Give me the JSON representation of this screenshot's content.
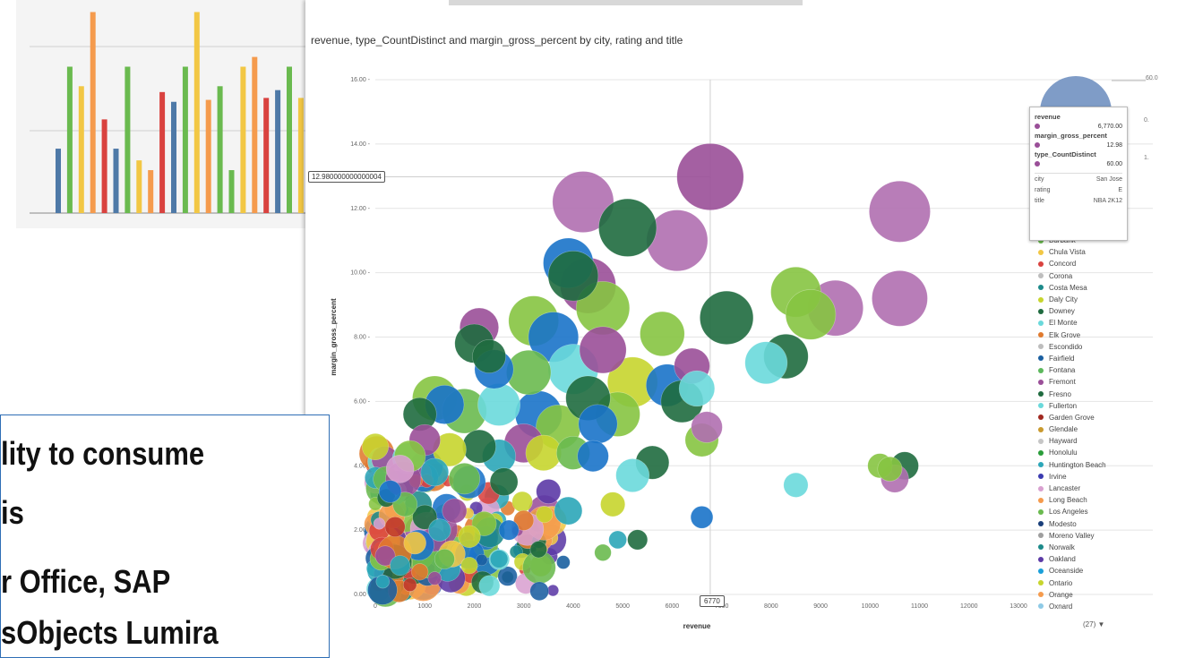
{
  "chart_data": [
    {
      "type": "bar",
      "ylim": [
        0,
        10
      ],
      "colors": [
        "#4e79a7",
        "#6aba4f",
        "#f2c744",
        "#f59b4d",
        "#d9423f"
      ],
      "values": [
        3.3,
        7.5,
        6.5,
        10.3,
        4.8,
        3.3,
        7.5,
        2.7,
        2.2,
        6.2,
        5.7,
        7.5,
        10.3,
        5.8,
        6.5,
        2.2,
        7.5,
        8.0,
        5.9,
        6.3,
        7.5,
        5.9,
        8.0,
        8.9,
        7.0
      ],
      "bar_colors": [
        "#4e79a7",
        "#6aba4f",
        "#f2c744",
        "#f59b4d",
        "#d9423f",
        "#4e79a7",
        "#6aba4f",
        "#f2c744",
        "#f59b4d",
        "#d9423f",
        "#4e79a7",
        "#6aba4f",
        "#f2c744",
        "#f59b4d",
        "#6aba4f",
        "#6aba4f",
        "#f2c744",
        "#f59b4d",
        "#d9423f",
        "#4e79a7",
        "#6aba4f",
        "#f2c744",
        "#f59b4d",
        "#d9423f",
        "#6aba4f"
      ]
    },
    {
      "type": "scatter",
      "title": "revenue, type_CountDistinct and margin_gross_percent by city, rating and title",
      "xlabel": "revenue",
      "ylabel": "margin_gross_percent",
      "xlim": [
        0,
        13000
      ],
      "ylim": [
        0,
        16
      ],
      "x_ticks": [
        "0",
        "1000",
        "2000",
        "3000",
        "4000",
        "5000",
        "6000",
        "7000",
        "8000",
        "9000",
        "10000",
        "11000",
        "12000",
        "13000"
      ],
      "y_ticks": [
        "0.00",
        "2.00",
        "4.00",
        "6.00",
        "8.00",
        "10.00",
        "12.00",
        "14.00",
        "16.00"
      ],
      "cursor_x_label": "6770",
      "cursor_y_label": "12.980000000000004",
      "points": [
        {
          "x": 6770,
          "y": 12.98,
          "s": 60,
          "c": "#9a4f98"
        },
        {
          "x": 4200,
          "y": 12.2,
          "s": 55,
          "c": "#b06fb0"
        },
        {
          "x": 10600,
          "y": 11.9,
          "s": 55,
          "c": "#b06fb0"
        },
        {
          "x": 5100,
          "y": 11.4,
          "s": 52,
          "c": "#1f6b3f"
        },
        {
          "x": 6100,
          "y": 11.0,
          "s": 55,
          "c": "#b06fb0"
        },
        {
          "x": 3900,
          "y": 10.3,
          "s": 45,
          "c": "#1a73c9"
        },
        {
          "x": 4000,
          "y": 9.9,
          "s": 45,
          "c": "#1f6b3f"
        },
        {
          "x": 4300,
          "y": 9.6,
          "s": 50,
          "c": "#9a4f98"
        },
        {
          "x": 8500,
          "y": 9.4,
          "s": 45,
          "c": "#86c441"
        },
        {
          "x": 9300,
          "y": 8.9,
          "s": 50,
          "c": "#b06fb0"
        },
        {
          "x": 10600,
          "y": 9.2,
          "s": 50,
          "c": "#b06fb0"
        },
        {
          "x": 8800,
          "y": 8.7,
          "s": 45,
          "c": "#86c441"
        },
        {
          "x": 7100,
          "y": 8.6,
          "s": 48,
          "c": "#1f6b3f"
        },
        {
          "x": 8300,
          "y": 7.4,
          "s": 40,
          "c": "#1f6b3f"
        },
        {
          "x": 7900,
          "y": 7.2,
          "s": 38,
          "c": "#6ad9db"
        },
        {
          "x": 2100,
          "y": 8.3,
          "s": 35,
          "c": "#9a4f98"
        },
        {
          "x": 3200,
          "y": 8.5,
          "s": 45,
          "c": "#86c441"
        },
        {
          "x": 4600,
          "y": 8.9,
          "s": 48,
          "c": "#86c441"
        },
        {
          "x": 3600,
          "y": 8.0,
          "s": 45,
          "c": "#1a73c9"
        },
        {
          "x": 5800,
          "y": 8.1,
          "s": 40,
          "c": "#86c441"
        },
        {
          "x": 2000,
          "y": 7.8,
          "s": 35,
          "c": "#1f6b3f"
        },
        {
          "x": 2300,
          "y": 7.4,
          "s": 30,
          "c": "#1f6b3f"
        },
        {
          "x": 2400,
          "y": 7.0,
          "s": 35,
          "c": "#1a73c9"
        },
        {
          "x": 3100,
          "y": 6.9,
          "s": 40,
          "c": "#6aba4f"
        },
        {
          "x": 4000,
          "y": 7.0,
          "s": 45,
          "c": "#6ad9db"
        },
        {
          "x": 4600,
          "y": 7.6,
          "s": 42,
          "c": "#9a4f98"
        },
        {
          "x": 5200,
          "y": 6.6,
          "s": 45,
          "c": "#c7d52d"
        },
        {
          "x": 6400,
          "y": 7.1,
          "s": 32,
          "c": "#9a4f98"
        },
        {
          "x": 6500,
          "y": 6.4,
          "s": 32,
          "c": "#6ad9db"
        },
        {
          "x": 5900,
          "y": 6.5,
          "s": 38,
          "c": "#1a73c9"
        },
        {
          "x": 6200,
          "y": 6.0,
          "s": 38,
          "c": "#1f6b3f"
        },
        {
          "x": 4900,
          "y": 5.6,
          "s": 40,
          "c": "#86c441"
        },
        {
          "x": 1200,
          "y": 6.1,
          "s": 40,
          "c": "#86c441"
        },
        {
          "x": 1400,
          "y": 5.9,
          "s": 35,
          "c": "#1a73c9"
        },
        {
          "x": 900,
          "y": 5.6,
          "s": 30,
          "c": "#1f6b3f"
        },
        {
          "x": 1800,
          "y": 5.7,
          "s": 40,
          "c": "#6aba4f"
        },
        {
          "x": 2500,
          "y": 5.9,
          "s": 38,
          "c": "#6ad9db"
        },
        {
          "x": 3300,
          "y": 5.6,
          "s": 42,
          "c": "#1a73c9"
        },
        {
          "x": 3700,
          "y": 5.2,
          "s": 40,
          "c": "#86c441"
        },
        {
          "x": 4300,
          "y": 6.1,
          "s": 40,
          "c": "#1f6b3f"
        },
        {
          "x": 4500,
          "y": 5.3,
          "s": 35,
          "c": "#1a73c9"
        },
        {
          "x": 6700,
          "y": 5.2,
          "s": 28,
          "c": "#b06fb0"
        },
        {
          "x": 6600,
          "y": 4.8,
          "s": 30,
          "c": "#86c441"
        },
        {
          "x": 5600,
          "y": 4.1,
          "s": 30,
          "c": "#1f6b3f"
        },
        {
          "x": 5200,
          "y": 3.7,
          "s": 30,
          "c": "#6ad9db"
        },
        {
          "x": 4400,
          "y": 4.3,
          "s": 28,
          "c": "#1a73c9"
        },
        {
          "x": 4000,
          "y": 4.4,
          "s": 30,
          "c": "#6aba4f"
        },
        {
          "x": 3400,
          "y": 4.4,
          "s": 32,
          "c": "#c7d52d"
        },
        {
          "x": 3000,
          "y": 4.7,
          "s": 35,
          "c": "#9a4f98"
        },
        {
          "x": 2500,
          "y": 4.3,
          "s": 30,
          "c": "#2ba6b8"
        },
        {
          "x": 2100,
          "y": 4.6,
          "s": 30,
          "c": "#1f6b3f"
        },
        {
          "x": 1500,
          "y": 4.5,
          "s": 30,
          "c": "#c7d52d"
        },
        {
          "x": 1000,
          "y": 4.8,
          "s": 28,
          "c": "#9a4f98"
        },
        {
          "x": 700,
          "y": 4.3,
          "s": 28,
          "c": "#86c441"
        },
        {
          "x": 500,
          "y": 3.9,
          "s": 25,
          "c": "#d9a0d0"
        },
        {
          "x": 1200,
          "y": 3.8,
          "s": 25,
          "c": "#2ba6b8"
        },
        {
          "x": 1800,
          "y": 3.6,
          "s": 28,
          "c": "#6aba4f"
        },
        {
          "x": 2600,
          "y": 3.5,
          "s": 25,
          "c": "#1f6b3f"
        },
        {
          "x": 3500,
          "y": 3.2,
          "s": 22,
          "c": "#5c3aa6"
        },
        {
          "x": 3900,
          "y": 2.6,
          "s": 25,
          "c": "#2ba6b8"
        },
        {
          "x": 4800,
          "y": 2.8,
          "s": 22,
          "c": "#c7d52d"
        },
        {
          "x": 5300,
          "y": 1.7,
          "s": 18,
          "c": "#1f6b3f"
        },
        {
          "x": 4900,
          "y": 1.7,
          "s": 16,
          "c": "#2ba6b8"
        },
        {
          "x": 4600,
          "y": 1.3,
          "s": 15,
          "c": "#6aba4f"
        },
        {
          "x": 6600,
          "y": 2.4,
          "s": 20,
          "c": "#1a73c9"
        },
        {
          "x": 8500,
          "y": 3.4,
          "s": 22,
          "c": "#6ad9db"
        },
        {
          "x": 10200,
          "y": 4.0,
          "s": 22,
          "c": "#86c441"
        },
        {
          "x": 10700,
          "y": 4.0,
          "s": 25,
          "c": "#1f6b3f"
        },
        {
          "x": 10500,
          "y": 3.6,
          "s": 25,
          "c": "#b06fb0"
        },
        {
          "x": 10400,
          "y": 3.9,
          "s": 22,
          "c": "#86c441"
        },
        {
          "x": 3000,
          "y": 2.3,
          "s": 18,
          "c": "#e07a2e"
        },
        {
          "x": 2700,
          "y": 2.0,
          "s": 18,
          "c": "#1a73c9"
        },
        {
          "x": 2200,
          "y": 2.2,
          "s": 22,
          "c": "#86c441"
        },
        {
          "x": 1900,
          "y": 1.8,
          "s": 20,
          "c": "#c7d52d"
        },
        {
          "x": 1600,
          "y": 2.6,
          "s": 22,
          "c": "#9a4f98"
        },
        {
          "x": 1300,
          "y": 2.0,
          "s": 20,
          "c": "#2ba6b8"
        },
        {
          "x": 1000,
          "y": 2.4,
          "s": 22,
          "c": "#1f6b3f"
        },
        {
          "x": 800,
          "y": 1.6,
          "s": 20,
          "c": "#f2c744"
        },
        {
          "x": 600,
          "y": 2.8,
          "s": 22,
          "c": "#6aba4f"
        },
        {
          "x": 400,
          "y": 2.1,
          "s": 18,
          "c": "#c0392b"
        },
        {
          "x": 300,
          "y": 3.2,
          "s": 20,
          "c": "#1a73c9"
        },
        {
          "x": 200,
          "y": 1.2,
          "s": 18,
          "c": "#9a4f98"
        },
        {
          "x": 500,
          "y": 0.9,
          "s": 18,
          "c": "#2ba6b8"
        },
        {
          "x": 900,
          "y": 0.7,
          "s": 15,
          "c": "#e07a2e"
        },
        {
          "x": 1400,
          "y": 1.1,
          "s": 18,
          "c": "#6aba4f"
        },
        {
          "x": 1900,
          "y": 0.9,
          "s": 15,
          "c": "#c7d52d"
        },
        {
          "x": 2500,
          "y": 1.1,
          "s": 16,
          "c": "#2ba6b8"
        },
        {
          "x": 3300,
          "y": 1.4,
          "s": 15,
          "c": "#1f6b3f"
        },
        {
          "x": 3800,
          "y": 1.0,
          "s": 12,
          "c": "#1a5fa0"
        },
        {
          "x": 150,
          "y": 0.4,
          "s": 12,
          "c": "#2ba6b8"
        },
        {
          "x": 700,
          "y": 0.3,
          "s": 12,
          "c": "#c0392b"
        },
        {
          "x": 1200,
          "y": 0.5,
          "s": 12,
          "c": "#9a4f98"
        }
      ]
    }
  ],
  "tooltip": {
    "revenue_label": "revenue",
    "revenue_value": "6,770.00",
    "margin_label": "margin_gross_percent",
    "margin_value": "12.98",
    "count_label": "type_CountDistinct",
    "count_value": "60.00",
    "city_label": "city",
    "city_value": "San Jose",
    "rating_label": "rating",
    "rating_value": "E",
    "title_label": "title",
    "title_value": "NBA 2K12"
  },
  "size_legend_ticks": [
    "60.0",
    "0.",
    "1."
  ],
  "legend": {
    "items": [
      {
        "label": "Burbank",
        "color": "#6aba4f"
      },
      {
        "label": "Chula Vista",
        "color": "#f2c744"
      },
      {
        "label": "Concord",
        "color": "#d9423f"
      },
      {
        "label": "Corona",
        "color": "#bdbdbd"
      },
      {
        "label": "Costa Mesa",
        "color": "#1c8a8a"
      },
      {
        "label": "Daly City",
        "color": "#c7d52d"
      },
      {
        "label": "Downey",
        "color": "#1f6b3f"
      },
      {
        "label": "El Monte",
        "color": "#6ad9db"
      },
      {
        "label": "Elk Grove",
        "color": "#e07a2e"
      },
      {
        "label": "Escondido",
        "color": "#bdbdbd"
      },
      {
        "label": "Fairfield",
        "color": "#1a5fa0"
      },
      {
        "label": "Fontana",
        "color": "#5cb85c"
      },
      {
        "label": "Fremont",
        "color": "#9a4f98"
      },
      {
        "label": "Fresno",
        "color": "#1f6b3f"
      },
      {
        "label": "Fullerton",
        "color": "#6ad9db"
      },
      {
        "label": "Garden Grove",
        "color": "#a0281f"
      },
      {
        "label": "Glendale",
        "color": "#c99a2e"
      },
      {
        "label": "Hayward",
        "color": "#c6c6c6"
      },
      {
        "label": "Honolulu",
        "color": "#2a9d3a"
      },
      {
        "label": "Huntington Beach",
        "color": "#2ba6b8"
      },
      {
        "label": "Irvine",
        "color": "#3b3bb0"
      },
      {
        "label": "Lancaster",
        "color": "#d9a0d0"
      },
      {
        "label": "Long Beach",
        "color": "#f59b4d"
      },
      {
        "label": "Los Angeles",
        "color": "#6aba4f"
      },
      {
        "label": "Modesto",
        "color": "#1a3f7a"
      },
      {
        "label": "Moreno Valley",
        "color": "#9e9e9e"
      },
      {
        "label": "Norwalk",
        "color": "#1c8a8a"
      },
      {
        "label": "Oakland",
        "color": "#5c3aa6"
      },
      {
        "label": "Oceanside",
        "color": "#1a9fd9"
      },
      {
        "label": "Ontario",
        "color": "#c7d52d"
      },
      {
        "label": "Orange",
        "color": "#f59b4d"
      },
      {
        "label": "Oxnard",
        "color": "#8ecae6"
      }
    ],
    "more_label": "(27) ▼"
  },
  "text_box": {
    "line1": "lity to consume",
    "line2": "is",
    "line3": "r Office, SAP",
    "line4": "sObjects Lumira"
  }
}
